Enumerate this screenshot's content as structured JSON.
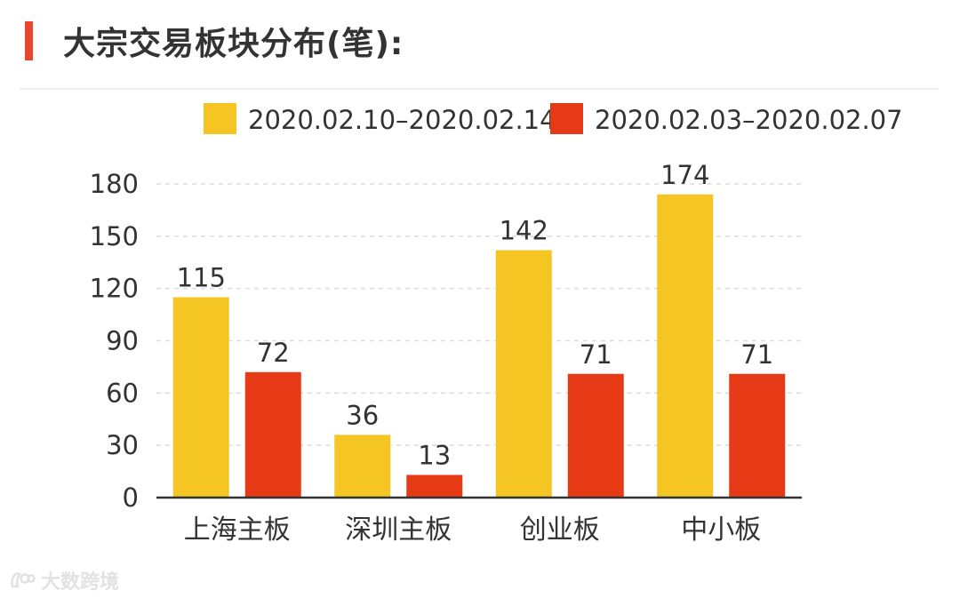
{
  "header": {
    "title": "大宗交易板块分布(笔):"
  },
  "colors": {
    "accent": "#e8462e",
    "series_current": "#f5c523",
    "series_previous": "#e63a17"
  },
  "watermark": {
    "text": "大数跨境",
    "icon": "brand-logo-icon"
  },
  "chart_data": {
    "type": "bar",
    "title": "",
    "xlabel": "",
    "ylabel": "",
    "categories": [
      "上海主板",
      "深圳主板",
      "创业板",
      "中小板"
    ],
    "series": [
      {
        "name": "2020.02.10–2020.02.14",
        "color": "#f5c523",
        "values": [
          115,
          36,
          142,
          174
        ]
      },
      {
        "name": "2020.02.03–2020.02.07",
        "color": "#e63a17",
        "values": [
          72,
          13,
          71,
          71
        ]
      }
    ],
    "ylim": [
      0,
      180
    ],
    "yticks": [
      0,
      30,
      60,
      90,
      120,
      150,
      180
    ],
    "grid": true,
    "legend": "top"
  }
}
